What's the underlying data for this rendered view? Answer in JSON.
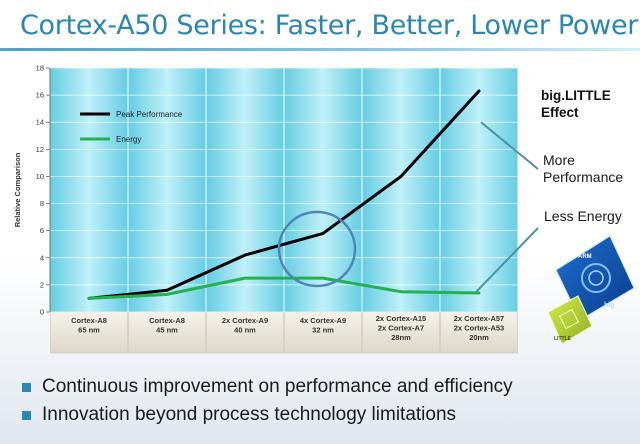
{
  "title": "Cortex-A50 Series: Faster, Better, Lower Power",
  "big_little": {
    "line1": "big.LITTLE",
    "line2": "Effect"
  },
  "callouts": {
    "more": "More Performance",
    "less": "Less Energy"
  },
  "bullets": [
    "Continuous improvement on performance and efficiency",
    "Innovation beyond process technology limitations"
  ],
  "chip_labels": {
    "arm": "ARM",
    "big": "big",
    "little": "LITTLE"
  },
  "colors": {
    "accent": "#2a86b2",
    "performance": "#000000",
    "energy": "#22b14c",
    "highlight_circle": "#4d86b3",
    "callout_line": "#4b91a6"
  },
  "chart_data": {
    "type": "line",
    "ylabel": "Relative Comparison",
    "ylim": [
      0,
      18
    ],
    "yticks": [
      0,
      2,
      4,
      6,
      8,
      10,
      12,
      14,
      16,
      18
    ],
    "categories": [
      [
        "Cortex-A8",
        "65 nm"
      ],
      [
        "Cortex-A8",
        "45 nm"
      ],
      [
        "2x Cortex-A9",
        "40 nm"
      ],
      [
        "4x Cortex-A9",
        "32 nm"
      ],
      [
        "2x Cortex-A15",
        "2x Cortex-A7",
        "28nm"
      ],
      [
        "2x Cortex-A57",
        "2x Cortex-A53",
        "20nm"
      ]
    ],
    "legend_position": "top-left",
    "series": [
      {
        "name": "Peak Performance",
        "color": "#000000",
        "points": [
          [
            0,
            1.0
          ],
          [
            1,
            1.6
          ],
          [
            2,
            4.2
          ],
          [
            3,
            5.8
          ],
          [
            4,
            10.0
          ],
          [
            5,
            16.3
          ]
        ]
      },
      {
        "name": "Energy",
        "color": "#22b14c",
        "points": [
          [
            0,
            1.0
          ],
          [
            1,
            1.3
          ],
          [
            2,
            2.5
          ],
          [
            3,
            2.5
          ],
          [
            4,
            1.5
          ],
          [
            5,
            1.4
          ]
        ]
      }
    ]
  }
}
